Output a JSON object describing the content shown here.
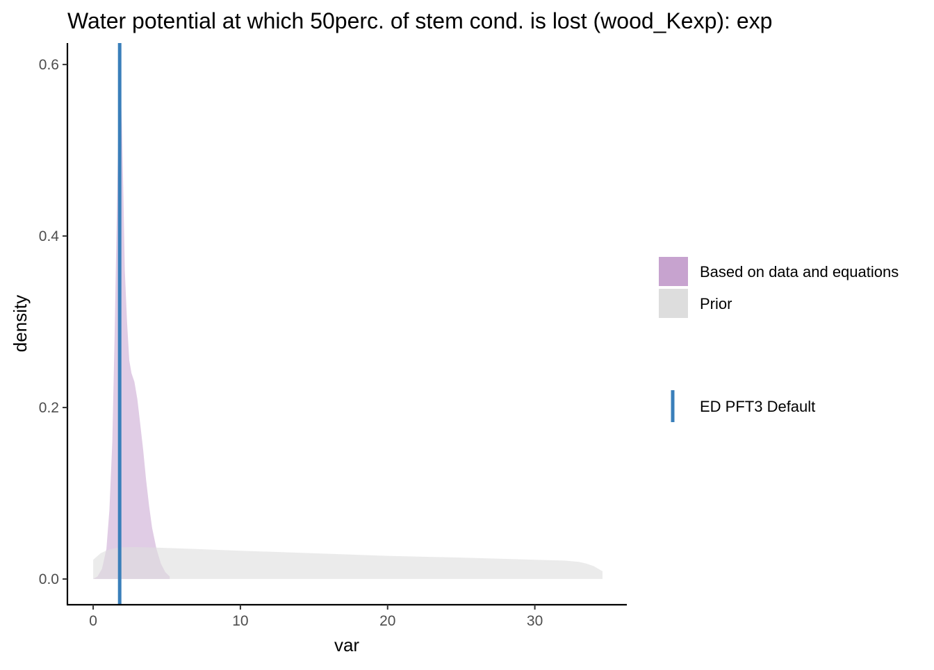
{
  "chart_data": {
    "type": "area",
    "title": "Water potential at which 50perc. of stem cond. is lost (wood_Kexp): exp",
    "xlabel": "var",
    "ylabel": "density",
    "xlim": [
      -1.75,
      36.25
    ],
    "ylim": [
      -0.03,
      0.625
    ],
    "x_ticks": [
      0,
      10,
      20,
      30
    ],
    "y_ticks": [
      0.0,
      0.2,
      0.4,
      0.6
    ],
    "x_tick_labels": [
      "0",
      "10",
      "20",
      "30"
    ],
    "y_tick_labels": [
      "0.0",
      "0.2",
      "0.4",
      "0.6"
    ],
    "grid": false,
    "legend_position": "right",
    "series": [
      {
        "name": "Prior",
        "color": "#dddddd",
        "opacity": 0.6,
        "x": [
          0,
          0.5,
          1,
          1.5,
          2,
          2.5,
          3,
          4,
          5,
          7,
          10,
          15,
          20,
          25,
          30,
          32,
          33,
          33.5,
          34,
          34.3,
          34.6
        ],
        "y": [
          0.0225,
          0.03,
          0.034,
          0.036,
          0.037,
          0.0372,
          0.0372,
          0.0368,
          0.0362,
          0.035,
          0.033,
          0.03,
          0.027,
          0.025,
          0.0225,
          0.0215,
          0.02,
          0.018,
          0.015,
          0.012,
          0.009
        ]
      },
      {
        "name": "Based on data and equations",
        "color": "#c7a3cf",
        "opacity": 0.55,
        "x": [
          0,
          0.3,
          0.6,
          0.9,
          1.1,
          1.3,
          1.45,
          1.6,
          1.7,
          1.75,
          1.85,
          1.95,
          2.05,
          2.15,
          2.3,
          2.45,
          2.6,
          2.8,
          3.0,
          3.2,
          3.4,
          3.6,
          3.8,
          4.0,
          4.3,
          4.6,
          4.9,
          5.2
        ],
        "y": [
          0.0,
          0.003,
          0.012,
          0.035,
          0.08,
          0.16,
          0.28,
          0.42,
          0.52,
          0.585,
          0.58,
          0.53,
          0.45,
          0.36,
          0.3,
          0.255,
          0.24,
          0.23,
          0.21,
          0.18,
          0.15,
          0.115,
          0.085,
          0.06,
          0.035,
          0.018,
          0.008,
          0.003
        ]
      }
    ],
    "reference_line": {
      "name": "ED PFT3 Default",
      "x": 1.8,
      "color": "#3a7fba"
    },
    "legend": {
      "fill_items": [
        {
          "label": "Based on data and equations",
          "color": "#c7a3cf"
        },
        {
          "label": "Prior",
          "color": "#dddddd"
        }
      ],
      "line_item": {
        "label": "ED PFT3 Default",
        "color": "#3a7fba"
      }
    }
  }
}
